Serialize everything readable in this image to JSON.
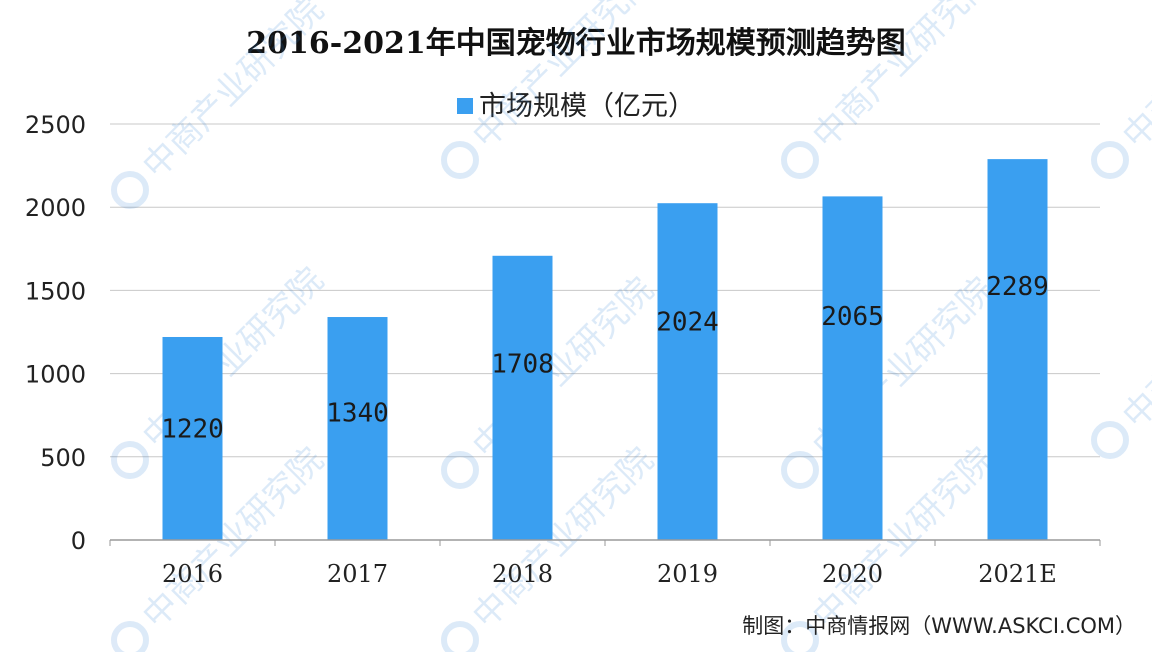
{
  "chart_data": {
    "type": "bar",
    "title": "2016-2021年中国宠物行业市场规模预测趋势图",
    "categories": [
      "2016",
      "2017",
      "2018",
      "2019",
      "2020",
      "2021E"
    ],
    "series": [
      {
        "name": "市场规模（亿元）",
        "values": [
          1220,
          1340,
          1708,
          2024,
          2065,
          2289
        ]
      }
    ],
    "y_ticks": [
      "0",
      "500",
      "1000",
      "1500",
      "2000",
      "2500"
    ],
    "ylim": [
      0,
      2500
    ],
    "xlabel": "",
    "ylabel": "",
    "grid": true,
    "legend_position": "top-center",
    "bar_color": "#3a9ff0",
    "watermark_text": "中商产业研究院"
  },
  "source_note": "制图：中商情报网（WWW.ASKCI.COM）"
}
